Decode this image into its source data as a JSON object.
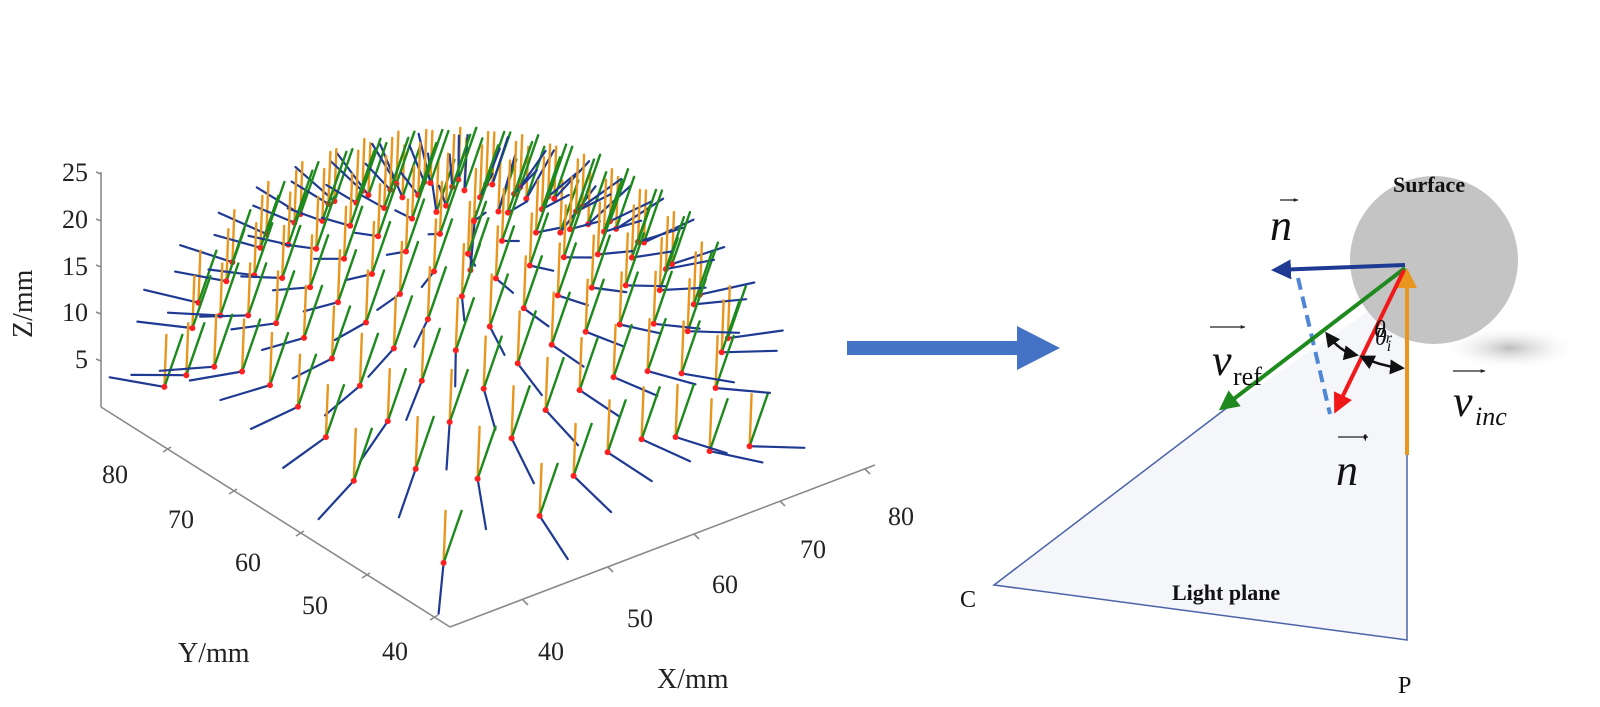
{
  "figure": {
    "left_panel": {
      "z_axis": {
        "title": "Z/mm",
        "ticks": [
          "5",
          "10",
          "15",
          "20",
          "25"
        ]
      },
      "y_axis": {
        "title": "Y/mm",
        "ticks": [
          "80",
          "70",
          "60",
          "50",
          "40"
        ]
      },
      "x_axis": {
        "title": "X/mm",
        "ticks": [
          "40",
          "50",
          "60",
          "70",
          "80"
        ]
      }
    },
    "transition_arrow": {
      "icon": "right-arrow-icon",
      "color": "#4472C4"
    },
    "right_panel": {
      "surface_label": "Surface",
      "light_plane_label": "Light plane",
      "point_c": "C",
      "point_p": "P",
      "normal_label": "n",
      "normal_prime_label": "n",
      "normal_prime_mark": "'",
      "v_ref_main": "v",
      "v_ref_sub": "ref",
      "v_inc_main": "v",
      "v_inc_sub": "inc",
      "theta_r": "θ",
      "theta_r_sub": "r",
      "theta_i": "θ",
      "theta_i_sub": "i"
    },
    "colors": {
      "normal_vector": "#1F3A93",
      "reflected_vector": "#1E8A1E",
      "incident_vector": "#E8961E",
      "normal_prime_vector": "#F01818",
      "dashed_projection": "#4F86D6",
      "point_marker": "#FF2020",
      "surface_fill": "#C4C4C4",
      "light_plane_fill": "#F4F6FA",
      "light_plane_edge": "#4A63A8",
      "axis_line": "#8A8A8A"
    }
  },
  "chart_data": {
    "type": "scatter3d-quiver",
    "title": "",
    "xlabel": "X/mm",
    "ylabel": "Y/mm",
    "zlabel": "Z/mm",
    "xlim": [
      35,
      85
    ],
    "ylim": [
      35,
      85
    ],
    "zlim": [
      0,
      25
    ],
    "x_ticks": [
      40,
      50,
      60,
      70,
      80
    ],
    "y_ticks": [
      40,
      50,
      60,
      70,
      80
    ],
    "z_ticks": [
      5,
      10,
      15,
      20,
      25
    ],
    "grid": false,
    "legend": null,
    "series": [
      {
        "name": "surface points",
        "color": "#FF2020",
        "marker": "dot"
      },
      {
        "name": "normal vectors",
        "color": "#1F3A93"
      },
      {
        "name": "reflected vectors",
        "color": "#1E8A1E"
      },
      {
        "name": "incident vectors",
        "color": "#E8961E"
      }
    ],
    "description": "Dome-shaped surface (max Z ≈ 22 mm) sampled on a grid; each point shows incident, reflected and normal vectors"
  }
}
